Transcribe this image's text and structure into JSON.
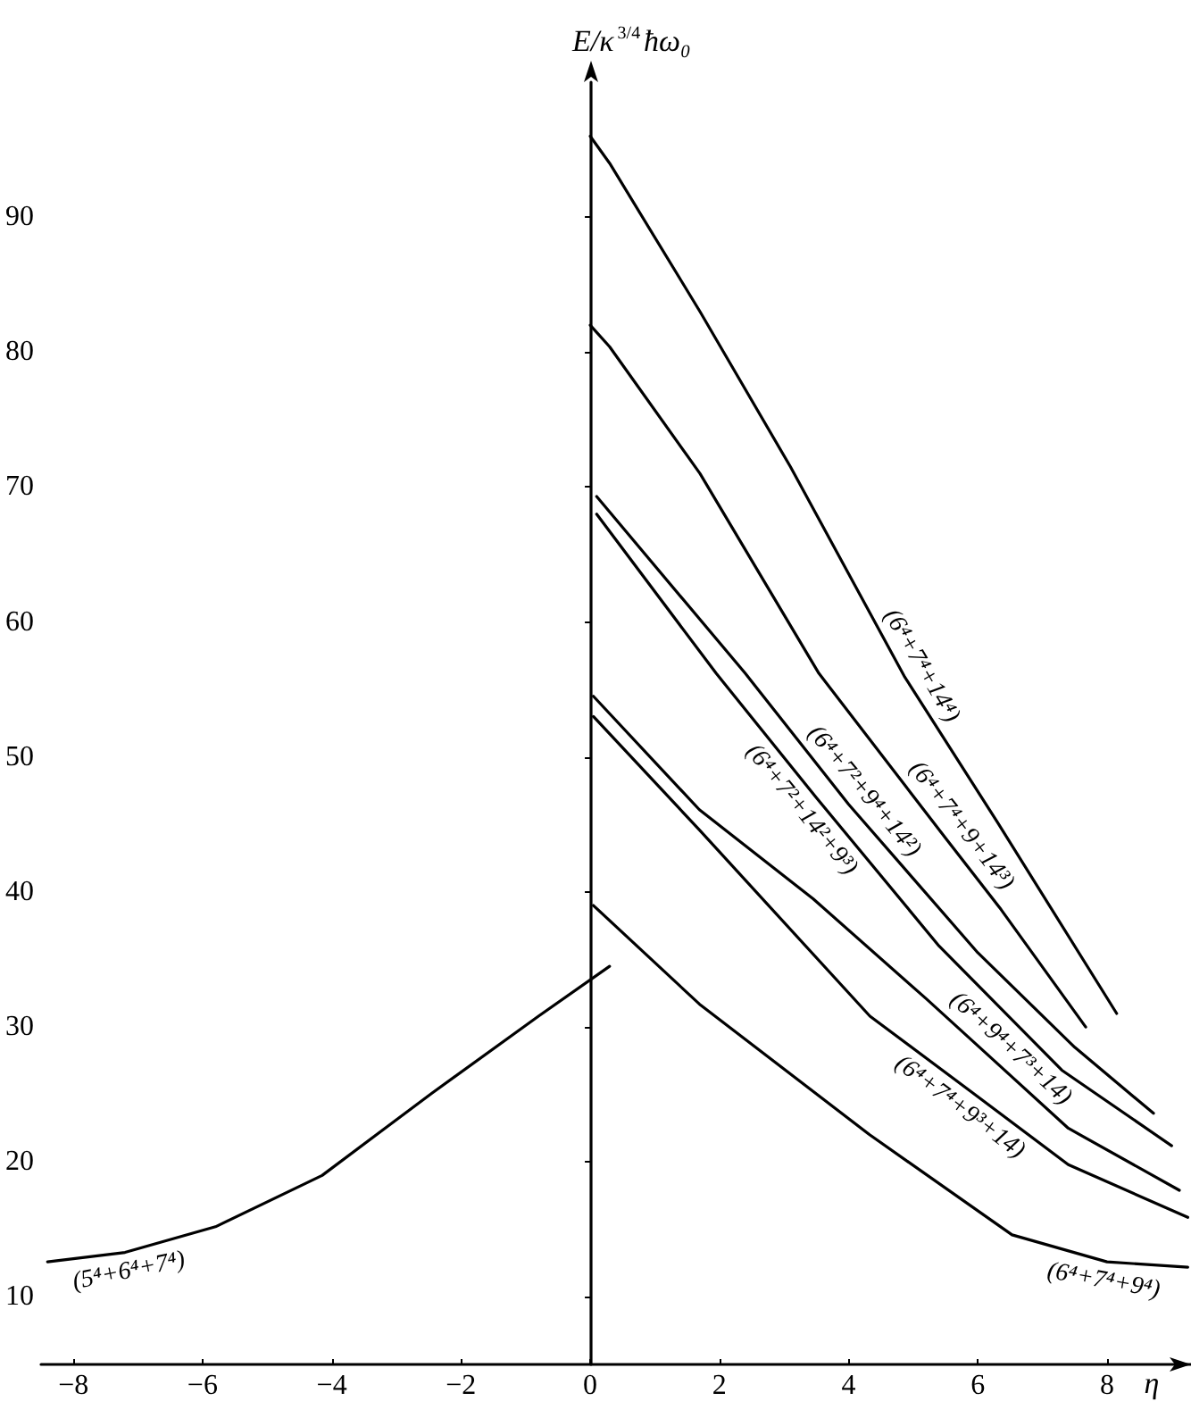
{
  "chart_data": {
    "type": "line",
    "xlabel": "η",
    "ylabel": "E/κ$^{3/4}$ħω₀",
    "color": "#000000",
    "xlim": [
      -8.5,
      9.3
    ],
    "ylim": [
      5,
      100
    ],
    "xticks": [
      {
        "value": -8,
        "label": "−8"
      },
      {
        "value": -6,
        "label": "−6"
      },
      {
        "value": -4,
        "label": "−4"
      },
      {
        "value": -2,
        "label": "−2"
      },
      0,
      2,
      4,
      6,
      8
    ],
    "yticks": [
      10,
      20,
      30,
      40,
      50,
      60,
      70,
      80,
      90
    ],
    "series": [
      {
        "x": [
          0,
          0.3,
          1.7,
          3.1,
          4.86,
          6.3,
          8.15
        ],
        "values": [
          96,
          94,
          83,
          71.5,
          56,
          45.2,
          31
        ]
      },
      {
        "x": [
          0,
          0.3,
          1.7,
          3.54,
          5.5,
          6.36,
          7.67
        ],
        "values": [
          82,
          80.4,
          71,
          56.2,
          44,
          38.7,
          30
        ]
      },
      {
        "x": [
          0.1,
          2.4,
          4,
          6,
          7.5,
          8.72
        ],
        "values": [
          69.3,
          56.2,
          46.5,
          35.5,
          28.5,
          23.6
        ]
      },
      {
        "x": [
          0.1,
          1.95,
          3.5,
          5.4,
          7.3,
          9
        ],
        "values": [
          68,
          56.2,
          47,
          36,
          26.8,
          21.2
        ]
      },
      {
        "x": [
          0.05,
          1.69,
          3.45,
          5.2,
          6.3,
          7.4,
          9.12
        ],
        "values": [
          54.5,
          46.1,
          39.5,
          32.1,
          27.3,
          22.5,
          17.9
        ]
      },
      {
        "x": [
          0.05,
          1.69,
          4.33,
          5.9,
          7.4,
          9.25
        ],
        "values": [
          53,
          44.6,
          30.8,
          25.2,
          19.8,
          15.9
        ]
      },
      {
        "x": [
          0.05,
          1.69,
          4.33,
          6.53,
          8,
          9.25
        ],
        "values": [
          39,
          31.7,
          22,
          14.6,
          12.6,
          12.2
        ]
      },
      {
        "x": [
          -8.4,
          -7.2,
          -5.8,
          -4.15,
          -2.45,
          -0.8,
          0.3
        ],
        "values": [
          12.6,
          13.3,
          15.2,
          19,
          25.1,
          30.8,
          34.5
        ]
      }
    ],
    "annotations": [
      {
        "text": "(6⁴+7⁴+14⁴)",
        "x": 4.86,
        "y": 56
      },
      {
        "text": "(6⁴+7⁴+9+14³)",
        "x": 5.5,
        "y": 44
      },
      {
        "text": "(6⁴+7²+9⁴+14²)",
        "x": 4,
        "y": 46.5
      },
      {
        "text": "(6⁴+7²+14²+9³)",
        "x": 3.5,
        "y": 47
      },
      {
        "text": "(6⁴+9⁴+7³+14)",
        "x": 6.3,
        "y": 27.3
      },
      {
        "text": "(6⁴+7⁴+9³+14)",
        "x": 5.9,
        "y": 25.2
      },
      {
        "text": "(6⁴+7⁴+9⁴)",
        "x": 8,
        "y": 12.6
      },
      {
        "text": "(5⁴+6⁴+7⁴)",
        "x": -7.2,
        "y": 13.3
      }
    ]
  }
}
